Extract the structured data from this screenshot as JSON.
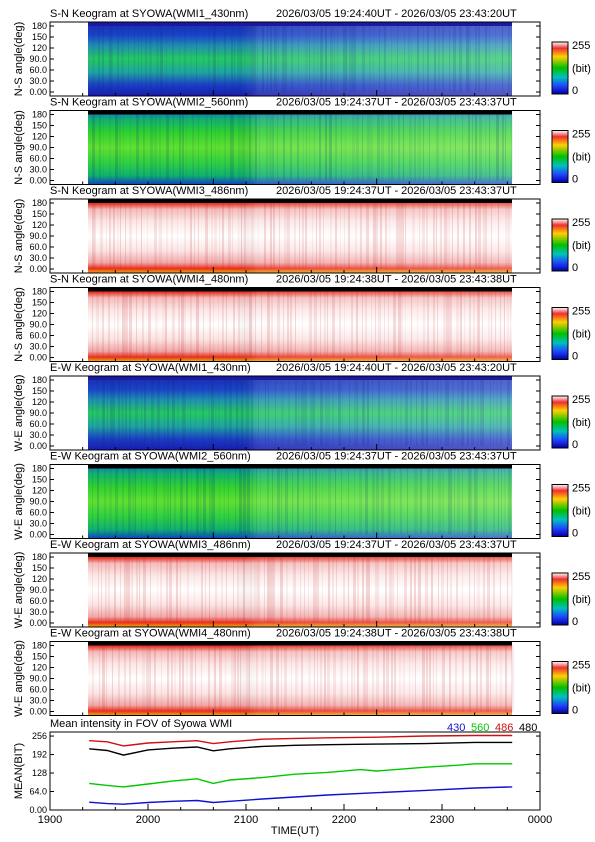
{
  "keograms": [
    {
      "title": "S-N Keogram at SYOWA(WMI1_430nm)",
      "time_range": "2026/03/05 19:24:40UT - 2026/03/05 23:43:20UT",
      "ylabel": "N-S angle(deg)",
      "palette": "blue-green",
      "top_band": "#1a1aa0",
      "variant": "sn"
    },
    {
      "title": "S-N Keogram at SYOWA(WMI2_560nm)",
      "time_range": "2026/03/05 19:24:37UT - 2026/03/05 23:43:37UT",
      "ylabel": "N-S angle(deg)",
      "palette": "green",
      "top_band": "#000000",
      "variant": "sn"
    },
    {
      "title": "S-N Keogram at SYOWA(WMI3_486nm)",
      "time_range": "2026/03/05 19:24:37UT - 2026/03/05 23:43:37UT",
      "ylabel": "N-S angle(deg)",
      "palette": "red",
      "top_band": "#000000",
      "variant": "sn"
    },
    {
      "title": "S-N Keogram at SYOWA(WMI4_480nm)",
      "time_range": "2026/03/05 19:24:38UT - 2026/03/05 23:43:38UT",
      "ylabel": "N-S angle(deg)",
      "palette": "red",
      "top_band": "#000000",
      "variant": "sn"
    },
    {
      "title": "E-W Keogram at SYOWA(WMI1_430nm)",
      "time_range": "2026/03/05 19:24:40UT - 2026/03/05 23:43:20UT",
      "ylabel": "W-E angle(deg)",
      "palette": "blue-green",
      "top_band": "#1a1aa0",
      "variant": "ew"
    },
    {
      "title": "E-W Keogram at SYOWA(WMI2_560nm)",
      "time_range": "2026/03/05 19:24:37UT - 2026/03/05 23:43:37UT",
      "ylabel": "W-E angle(deg)",
      "palette": "green",
      "top_band": "#000000",
      "variant": "ew"
    },
    {
      "title": "E-W Keogram at SYOWA(WMI3_486nm)",
      "time_range": "2026/03/05 19:24:37UT - 2026/03/05 23:43:37UT",
      "ylabel": "W-E angle(deg)",
      "palette": "red",
      "top_band": "#000000",
      "variant": "ew"
    },
    {
      "title": "E-W Keogram at SYOWA(WMI4_480nm)",
      "time_range": "2026/03/05 19:24:38UT - 2026/03/05 23:43:38UT",
      "ylabel": "W-E angle(deg)",
      "palette": "red",
      "top_band": "#000000",
      "variant": "ew"
    }
  ],
  "keogram_yticks": [
    "0.00",
    "30.0",
    "60.0",
    "90.0",
    "120",
    "150",
    "180"
  ],
  "colorbar": {
    "max_label": "255",
    "unit_label": "(bit)",
    "min_label": "0"
  },
  "chart_data": {
    "type": "line",
    "title": "Mean intensity in FOV of Syowa WMI",
    "xlabel": "TIME(UT)",
    "ylabel": "MEAN(BIT)",
    "xticks": [
      "1900",
      "2000",
      "2100",
      "2200",
      "2300",
      "0000"
    ],
    "yticks": [
      "0.00",
      "64.0",
      "128",
      "192",
      "256"
    ],
    "xlim": [
      0,
      300
    ],
    "ylim": [
      0,
      270
    ],
    "x_unit_note": "minutes after 19:00 UT",
    "series": [
      {
        "name": "430",
        "color": "#1010d0",
        "x": [
          24,
          35,
          45,
          60,
          75,
          90,
          100,
          110,
          130,
          150,
          170,
          200,
          230,
          260,
          283
        ],
        "y": [
          27,
          22,
          20,
          26,
          30,
          33,
          26,
          30,
          38,
          45,
          52,
          60,
          68,
          76,
          80
        ]
      },
      {
        "name": "560",
        "color": "#00c800",
        "x": [
          24,
          35,
          45,
          60,
          75,
          90,
          100,
          110,
          130,
          150,
          170,
          190,
          200,
          230,
          250,
          260,
          283
        ],
        "y": [
          92,
          85,
          80,
          90,
          100,
          108,
          92,
          104,
          112,
          124,
          130,
          140,
          135,
          148,
          155,
          160,
          160
        ]
      },
      {
        "name": "486",
        "color": "#d01010",
        "x": [
          24,
          35,
          45,
          60,
          75,
          90,
          100,
          110,
          130,
          150,
          170,
          200,
          230,
          260,
          283
        ],
        "y": [
          240,
          236,
          222,
          232,
          236,
          240,
          230,
          236,
          245,
          248,
          250,
          252,
          256,
          258,
          258
        ]
      },
      {
        "name": "480",
        "color": "#000000",
        "x": [
          24,
          35,
          45,
          60,
          75,
          90,
          100,
          110,
          130,
          150,
          170,
          200,
          230,
          260,
          283
        ],
        "y": [
          212,
          206,
          190,
          208,
          214,
          218,
          205,
          212,
          220,
          224,
          226,
          228,
          230,
          234,
          234
        ]
      }
    ]
  }
}
